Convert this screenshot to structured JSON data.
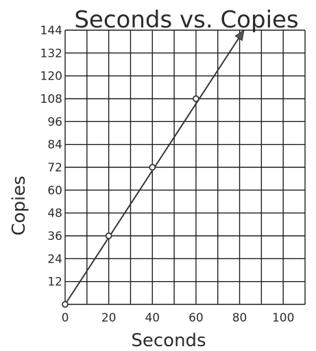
{
  "chart_data": {
    "type": "line",
    "title": "Seconds vs. Copies",
    "xlabel": "Seconds",
    "ylabel": "Copies",
    "xlim": [
      0,
      100
    ],
    "ylim": [
      0,
      144
    ],
    "x_ticks": [
      "0",
      "20",
      "40",
      "60",
      "80",
      "100"
    ],
    "y_ticks": [
      "12",
      "24",
      "36",
      "48",
      "60",
      "72",
      "84",
      "96",
      "108",
      "120",
      "132",
      "144"
    ],
    "grid": true,
    "series": [
      {
        "x": [
          0,
          20,
          40,
          60
        ],
        "y": [
          0,
          36,
          72,
          108
        ],
        "arrow_end": [
          82,
          144
        ]
      }
    ],
    "colors": {
      "line": "#333333",
      "grid": "#1a1a1a",
      "text": "#2b2b2b",
      "arrowhead": "#555555"
    }
  }
}
